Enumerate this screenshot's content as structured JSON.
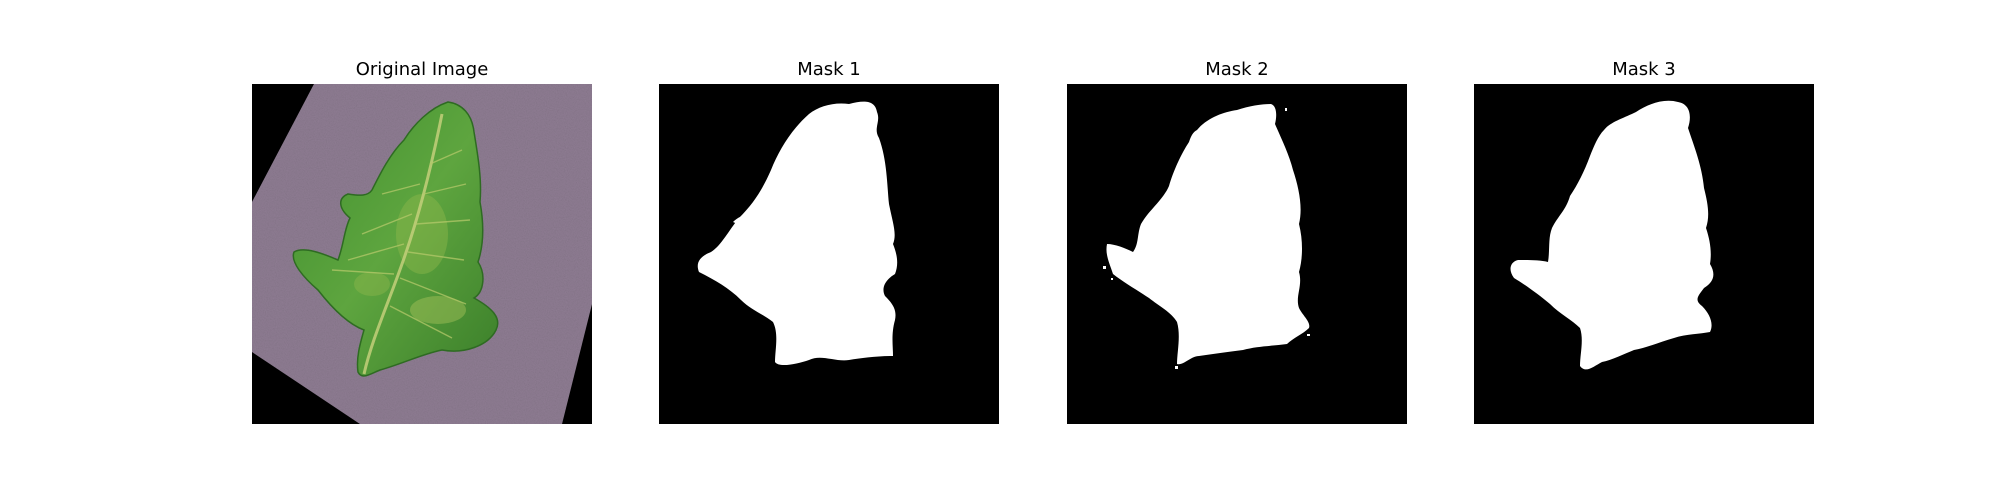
{
  "panels": [
    {
      "title": "Original Image",
      "kind": "photo"
    },
    {
      "title": "Mask 1",
      "kind": "mask"
    },
    {
      "title": "Mask 2",
      "kind": "mask"
    },
    {
      "title": "Mask 3",
      "kind": "mask"
    }
  ],
  "colors": {
    "background": "#000000",
    "mask_fill": "#ffffff",
    "paper": "#8f7d93",
    "leaf": "#4f9a3a",
    "leaf_vein": "#b4c86a"
  }
}
